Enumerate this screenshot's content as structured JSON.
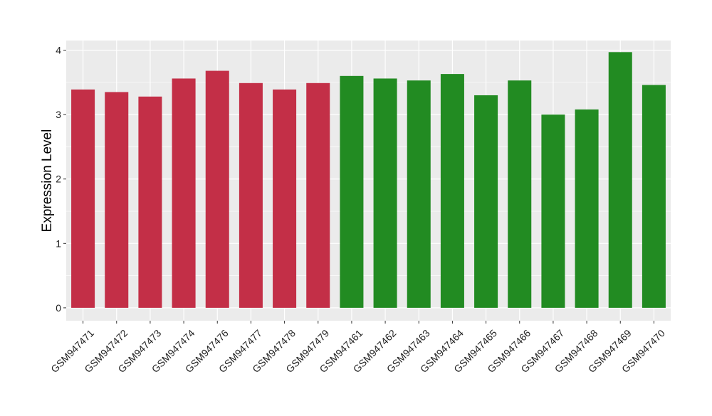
{
  "chart_data": {
    "type": "bar",
    "title": "",
    "xlabel": "",
    "ylabel": "Expression Level",
    "ylim": [
      -0.2,
      4.15
    ],
    "yticks": [
      0,
      1,
      2,
      3,
      4
    ],
    "grid": true,
    "categories": [
      "GSM947471",
      "GSM947472",
      "GSM947473",
      "GSM947474",
      "GSM947476",
      "GSM947477",
      "GSM947478",
      "GSM947479",
      "GSM947461",
      "GSM947462",
      "GSM947463",
      "GSM947464",
      "GSM947465",
      "GSM947466",
      "GSM947467",
      "GSM947468",
      "GSM947469",
      "GSM947470"
    ],
    "values": [
      3.39,
      3.35,
      3.28,
      3.56,
      3.68,
      3.49,
      3.39,
      3.49,
      3.6,
      3.56,
      3.53,
      3.63,
      3.3,
      3.53,
      3.0,
      3.08,
      3.97,
      3.46
    ],
    "bar_colors": [
      "#c32f47",
      "#c32f47",
      "#c32f47",
      "#c32f47",
      "#c32f47",
      "#c32f47",
      "#c32f47",
      "#c32f47",
      "#228b22",
      "#228b22",
      "#228b22",
      "#228b22",
      "#228b22",
      "#228b22",
      "#228b22",
      "#228b22",
      "#228b22",
      "#228b22"
    ],
    "panel_background": "#ebebeb",
    "grid_color": "#ffffff"
  }
}
